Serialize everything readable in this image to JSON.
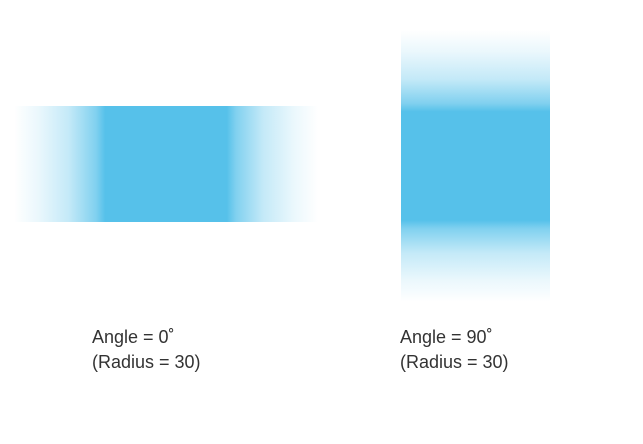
{
  "colors": {
    "blur_fill": "#56c1ea",
    "background": "#ffffff",
    "caption_text": "#333333"
  },
  "panels": [
    {
      "angle_label": "Angle = 0˚",
      "radius_label": "(Radius = 30)",
      "blur_direction": "horizontal"
    },
    {
      "angle_label": "Angle = 90˚",
      "radius_label": "(Radius = 30)",
      "blur_direction": "vertical"
    }
  ]
}
